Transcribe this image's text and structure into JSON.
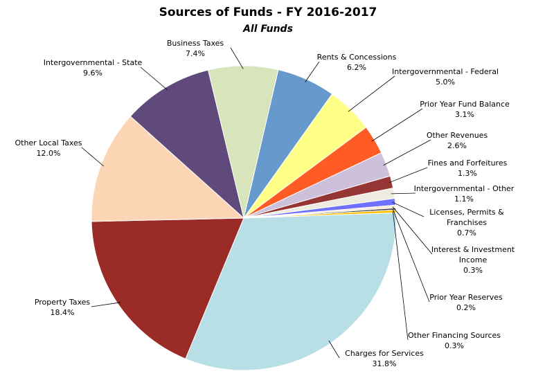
{
  "chart_data": {
    "type": "pie",
    "title": "Sources of Funds - FY 2016-2017",
    "subtitle": "All Funds",
    "slices": [
      {
        "name": "Charges for Services",
        "value": 31.8,
        "label": "31.8%",
        "color": "#B8DEE6"
      },
      {
        "name": "Property Taxes",
        "value": 18.4,
        "label": "18.4%",
        "color": "#9B2B27"
      },
      {
        "name": "Other Local Taxes",
        "value": 12.0,
        "label": "12.0%",
        "color": "#FCD5B5"
      },
      {
        "name": "Intergovernmental - State",
        "value": 9.6,
        "label": "9.6%",
        "color": "#5F4A7B"
      },
      {
        "name": "Business Taxes",
        "value": 7.4,
        "label": "7.4%",
        "color": "#D8E4BC"
      },
      {
        "name": "Rents & Concessions",
        "value": 6.2,
        "label": "6.2%",
        "color": "#6699CC"
      },
      {
        "name": "Intergovernmental - Federal",
        "value": 5.0,
        "label": "5.0%",
        "color": "#FFFF88"
      },
      {
        "name": "Prior Year Fund Balance",
        "value": 3.1,
        "label": "3.1%",
        "color": "#FF5B24"
      },
      {
        "name": "Other Revenues",
        "value": 2.6,
        "label": "2.6%",
        "color": "#CCC0DA"
      },
      {
        "name": "Fines and Forfeitures",
        "value": 1.3,
        "label": "1.3%",
        "color": "#963634"
      },
      {
        "name": "Intergovernmental - Other",
        "value": 1.1,
        "label": "1.1%",
        "color": "#EEECE1"
      },
      {
        "name": "Licenses, Permits & Franchises",
        "value": 0.7,
        "label": "0.7%",
        "color": "#7070FF"
      },
      {
        "name": "Interest & Investment Income",
        "value": 0.3,
        "label": "0.3%",
        "color": "#FDE9D9"
      },
      {
        "name": "Prior Year Reserves",
        "value": 0.2,
        "label": "0.2%",
        "color": "#3A3A3A"
      },
      {
        "name": "Other Financing Sources",
        "value": 0.3,
        "label": "0.3%",
        "color": "#FFC000"
      }
    ]
  }
}
